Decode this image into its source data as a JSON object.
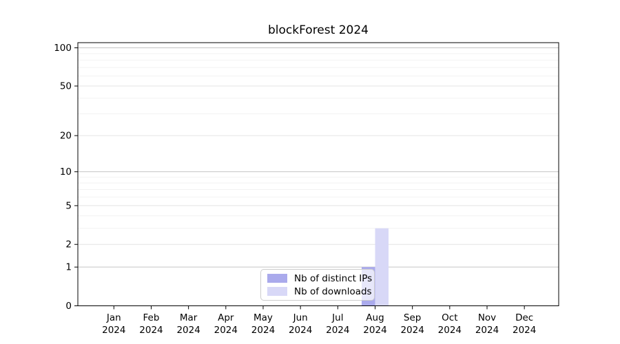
{
  "chart_data": {
    "type": "bar",
    "title": "blockForest 2024",
    "categories": [
      "Jan 2024",
      "Feb 2024",
      "Mar 2024",
      "Apr 2024",
      "May 2024",
      "Jun 2024",
      "Jul 2024",
      "Aug 2024",
      "Sep 2024",
      "Oct 2024",
      "Nov 2024",
      "Dec 2024"
    ],
    "series": [
      {
        "name": "Nb of distinct IPs",
        "color": "#aaaaec",
        "values": [
          0,
          0,
          0,
          0,
          0,
          0,
          0,
          1,
          0,
          0,
          0,
          0
        ]
      },
      {
        "name": "Nb of downloads",
        "color": "#d8d8f7",
        "values": [
          0,
          0,
          0,
          0,
          0,
          0,
          0,
          3,
          0,
          0,
          0,
          0
        ]
      }
    ],
    "yscale": "log1p",
    "ylim": [
      0,
      100
    ],
    "yticks": [
      0,
      1,
      2,
      5,
      10,
      20,
      50,
      100
    ],
    "minor_yticks": [
      3,
      4,
      6,
      7,
      8,
      9,
      30,
      40,
      60,
      70,
      80,
      90
    ],
    "grid": "horizontal",
    "legend_position": "lower center",
    "colors": {
      "axis": "#000000",
      "grid_decade": "#c4c4c4",
      "grid_major": "#e4e4e4",
      "grid_minor": "#f2f2f2"
    }
  }
}
